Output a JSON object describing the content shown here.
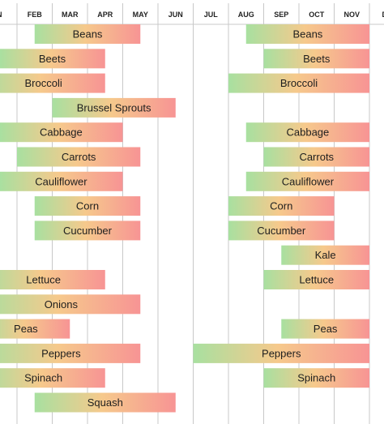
{
  "chart_data": {
    "type": "bar",
    "subtype": "gantt-timeline",
    "title": "",
    "xlabel": "",
    "ylabel": "",
    "months": [
      "JAN",
      "FEB",
      "MAR",
      "APR",
      "MAY",
      "JUN",
      "JUL",
      "AUG",
      "SEP",
      "OCT",
      "NOV",
      "DEC"
    ],
    "month_tick_labels": [
      "N",
      "FEB",
      "MAR",
      "APR",
      "MAY",
      "JUN",
      "JUL",
      "AUG",
      "SEP",
      "OCT",
      "NOV",
      "DE"
    ],
    "grid": "vertical month lines",
    "bar_gradient": {
      "start": "#a8e0a0",
      "middle": "#f6c98c",
      "end": "#f79494"
    },
    "gridline_color": "#c8c8c8",
    "rows": [
      {
        "crop": "Beans",
        "seasons": [
          {
            "start": 1.5,
            "end": 4.5
          },
          {
            "start": 7.5,
            "end": 11.0
          }
        ]
      },
      {
        "crop": "Beets",
        "seasons": [
          {
            "start": 0.5,
            "end": 3.5
          },
          {
            "start": 8.0,
            "end": 11.0
          }
        ]
      },
      {
        "crop": "Broccoli",
        "seasons": [
          {
            "start": 0.0,
            "end": 3.5
          },
          {
            "start": 7.0,
            "end": 11.0
          }
        ]
      },
      {
        "crop": "Brussel Sprouts",
        "seasons": [
          {
            "start": 2.0,
            "end": 5.5
          }
        ]
      },
      {
        "crop": "Cabbage",
        "seasons": [
          {
            "start": 0.5,
            "end": 4.0
          },
          {
            "start": 7.5,
            "end": 11.0
          }
        ]
      },
      {
        "crop": "Carrots",
        "seasons": [
          {
            "start": 1.0,
            "end": 4.5
          },
          {
            "start": 8.0,
            "end": 11.0
          }
        ]
      },
      {
        "crop": "Cauliflower",
        "seasons": [
          {
            "start": 0.5,
            "end": 4.0
          },
          {
            "start": 7.5,
            "end": 11.0
          }
        ]
      },
      {
        "crop": "Corn",
        "seasons": [
          {
            "start": 1.5,
            "end": 4.5
          },
          {
            "start": 7.0,
            "end": 10.0
          }
        ]
      },
      {
        "crop": "Cucumber",
        "seasons": [
          {
            "start": 1.5,
            "end": 4.5
          },
          {
            "start": 7.0,
            "end": 10.0
          }
        ]
      },
      {
        "crop": "Kale",
        "seasons": [
          {
            "start": 8.5,
            "end": 11.0
          }
        ]
      },
      {
        "crop": "Lettuce",
        "seasons": [
          {
            "start": 0.0,
            "end": 3.5
          },
          {
            "start": 8.0,
            "end": 11.0
          }
        ]
      },
      {
        "crop": "Onions",
        "seasons": [
          {
            "start": 0.0,
            "end": 4.5
          }
        ]
      },
      {
        "crop": "Peas",
        "seasons": [
          {
            "start": 0.0,
            "end": 2.5
          },
          {
            "start": 8.5,
            "end": 11.0
          }
        ]
      },
      {
        "crop": "Peppers",
        "seasons": [
          {
            "start": 0.0,
            "end": 4.5
          },
          {
            "start": 6.0,
            "end": 11.0
          }
        ]
      },
      {
        "crop": "Spinach",
        "seasons": [
          {
            "start": 0.0,
            "end": 3.5
          },
          {
            "start": 8.0,
            "end": 11.0
          }
        ]
      },
      {
        "crop": "Squash",
        "seasons": [
          {
            "start": 1.5,
            "end": 5.5
          }
        ]
      }
    ]
  }
}
